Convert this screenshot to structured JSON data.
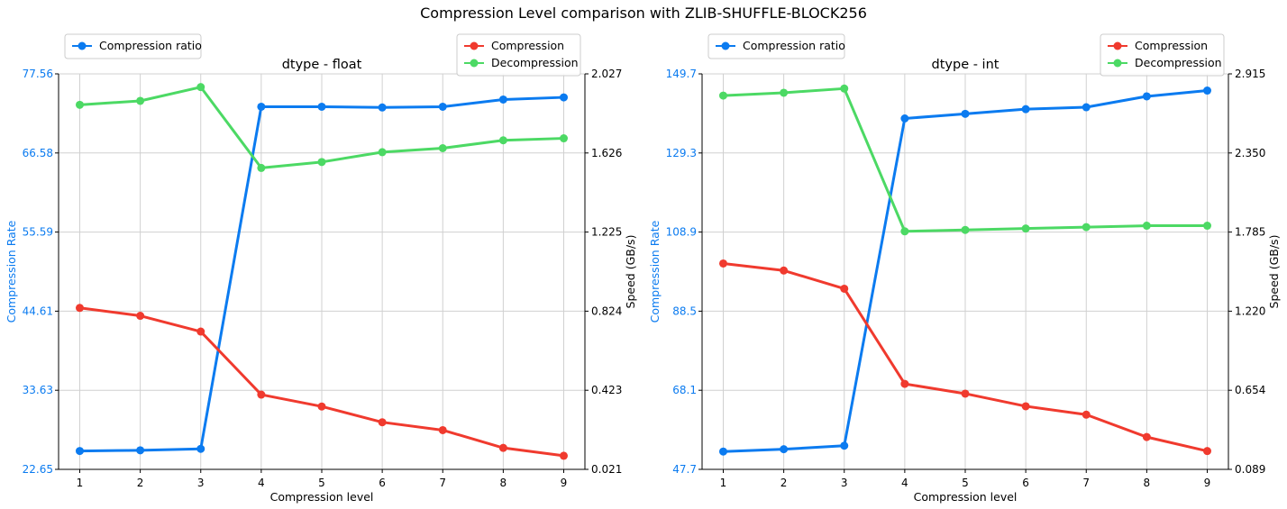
{
  "figure": {
    "title": "Compression Level comparison with ZLIB-SHUFFLE-BLOCK256"
  },
  "colors": {
    "ratio": "#0b7bf0",
    "compression": "#f03a2e",
    "decompression": "#4cd964",
    "grid": "#d0d0d0",
    "axis": "#000000"
  },
  "chart_data": [
    {
      "type": "line",
      "title": "dtype - float",
      "xlabel": "Compression level",
      "ylabel_left": "Compression Rate",
      "ylabel_right": "Speed (GB/s)",
      "x": [
        1,
        2,
        3,
        4,
        5,
        6,
        7,
        8,
        9
      ],
      "xlim": [
        0.65,
        9.35
      ],
      "ylim_left": [
        22.65,
        77.56
      ],
      "ylim_right": [
        0.021,
        2.027
      ],
      "yticks_left": [
        "22.65",
        "33.63",
        "44.61",
        "55.59",
        "66.58",
        "77.56"
      ],
      "yticks_right": [
        "0.021",
        "0.423",
        "0.824",
        "1.225",
        "1.626",
        "2.027"
      ],
      "grid": true,
      "legend_left": {
        "placement": "upper-left",
        "entries": [
          "Compression ratio"
        ]
      },
      "legend_right": {
        "placement": "upper-right",
        "entries": [
          "Compression",
          "Decompression"
        ]
      },
      "series": [
        {
          "name": "Compression ratio",
          "axis": "left",
          "color": "ratio",
          "values": [
            25.2,
            25.3,
            25.5,
            73.0,
            73.0,
            72.9,
            73.0,
            74.0,
            74.3
          ]
        },
        {
          "name": "Compression",
          "axis": "right",
          "color": "compression",
          "values": [
            0.84,
            0.8,
            0.72,
            0.4,
            0.34,
            0.26,
            0.22,
            0.13,
            0.09
          ]
        },
        {
          "name": "Decompression",
          "axis": "right",
          "color": "decompression",
          "values": [
            1.87,
            1.89,
            1.96,
            1.55,
            1.58,
            1.63,
            1.65,
            1.69,
            1.7
          ]
        }
      ]
    },
    {
      "type": "line",
      "title": "dtype - int",
      "xlabel": "Compression level",
      "ylabel_left": "Compression Rate",
      "ylabel_right": "Speed (GB/s)",
      "x": [
        1,
        2,
        3,
        4,
        5,
        6,
        7,
        8,
        9
      ],
      "xlim": [
        0.65,
        9.35
      ],
      "ylim_left": [
        47.7,
        149.7
      ],
      "ylim_right": [
        0.089,
        2.915
      ],
      "yticks_left": [
        "47.7",
        "68.1",
        "88.5",
        "108.9",
        "129.3",
        "149.7"
      ],
      "yticks_right": [
        "0.089",
        "0.654",
        "1.220",
        "1.785",
        "2.350",
        "2.915"
      ],
      "grid": true,
      "legend_left": {
        "placement": "upper-left",
        "entries": [
          "Compression ratio"
        ]
      },
      "legend_right": {
        "placement": "upper-right",
        "entries": [
          "Compression",
          "Decompression"
        ]
      },
      "series": [
        {
          "name": "Compression ratio",
          "axis": "left",
          "color": "ratio",
          "values": [
            52.3,
            52.9,
            53.8,
            138.2,
            139.4,
            140.6,
            141.1,
            143.9,
            145.4
          ]
        },
        {
          "name": "Compression",
          "axis": "right",
          "color": "compression",
          "values": [
            1.56,
            1.51,
            1.38,
            0.7,
            0.63,
            0.54,
            0.48,
            0.32,
            0.22
          ]
        },
        {
          "name": "Decompression",
          "axis": "right",
          "color": "decompression",
          "values": [
            2.76,
            2.78,
            2.81,
            1.79,
            1.8,
            1.81,
            1.82,
            1.83,
            1.83
          ]
        }
      ]
    }
  ]
}
